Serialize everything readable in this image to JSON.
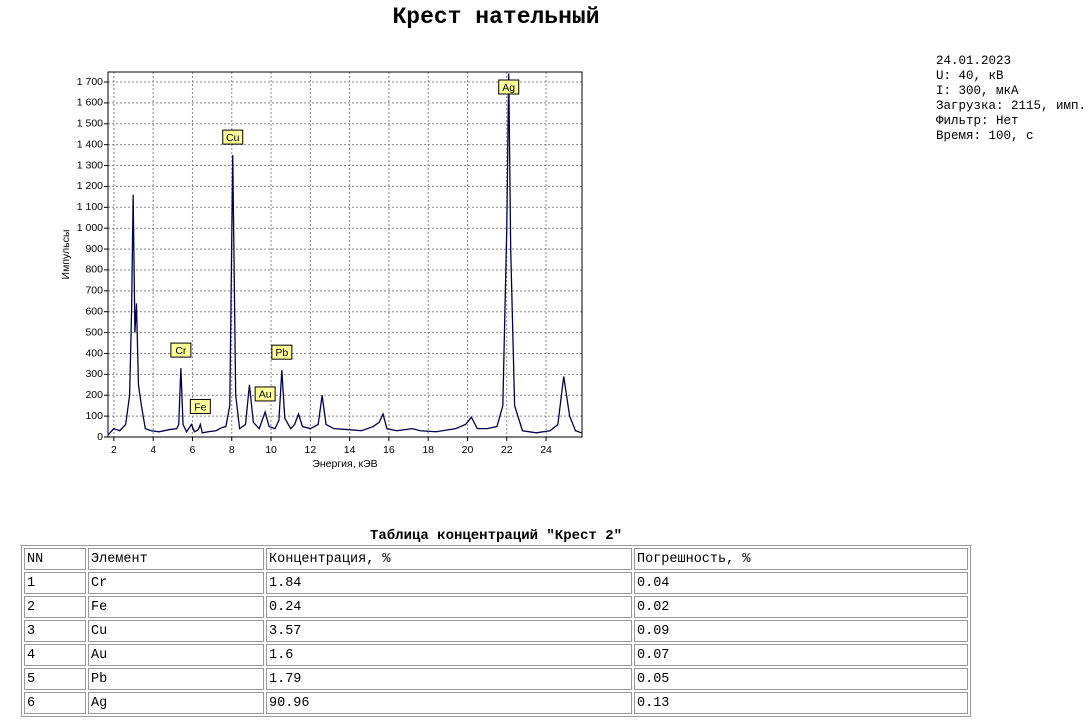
{
  "title": "Крест нательный",
  "info": [
    "24.01.2023",
    "U: 40, кВ",
    "I: 300, мкА",
    "Загрузка: 2115, имп.",
    "Фильтр: Нет",
    "Время: 100, с"
  ],
  "chart_data": {
    "type": "line",
    "xlabel": "Энергия, кЭВ",
    "ylabel": "Импульсы",
    "color": "#000050",
    "grid": true,
    "xlim": [
      1.7,
      25.83
    ],
    "ylim": [
      0,
      1748
    ],
    "xticks": [
      2,
      4,
      6,
      8,
      10,
      12,
      14,
      16,
      18,
      20,
      22,
      24
    ],
    "yticks": [
      0,
      100,
      200,
      300,
      400,
      500,
      600,
      700,
      800,
      900,
      {
        "value": 1000,
        "label": "1 000"
      },
      {
        "value": 1100,
        "label": "1 100"
      },
      {
        "value": 1200,
        "label": "1 200"
      },
      {
        "value": 1300,
        "label": "1 300"
      },
      {
        "value": 1400,
        "label": "1 400"
      },
      {
        "value": 1500,
        "label": "1 500"
      },
      {
        "value": 1600,
        "label": "1 600"
      },
      {
        "value": 1700,
        "label": "1 700"
      }
    ],
    "x": [
      1.7,
      2.0,
      2.3,
      2.6,
      2.8,
      2.9,
      2.98,
      3.07,
      3.15,
      3.25,
      3.4,
      3.6,
      3.9,
      4.3,
      4.8,
      5.2,
      5.3,
      5.41,
      5.52,
      5.7,
      5.95,
      6.1,
      6.3,
      6.4,
      6.5,
      6.8,
      7.2,
      7.5,
      7.7,
      7.9,
      8.05,
      8.2,
      8.4,
      8.7,
      8.9,
      9.1,
      9.4,
      9.7,
      9.9,
      10.2,
      10.4,
      10.55,
      10.7,
      11.0,
      11.2,
      11.4,
      11.6,
      12.0,
      12.4,
      12.6,
      12.8,
      13.2,
      14.0,
      14.6,
      15.2,
      15.5,
      15.7,
      15.9,
      16.4,
      17.2,
      17.6,
      18.4,
      19.4,
      19.9,
      20.2,
      20.5,
      21.0,
      21.5,
      21.8,
      22.0,
      22.1,
      22.2,
      22.4,
      22.8,
      23.5,
      24.2,
      24.6,
      24.9,
      25.2,
      25.5,
      25.8
    ],
    "values": [
      10,
      40,
      30,
      60,
      200,
      600,
      1160,
      500,
      640,
      250,
      150,
      40,
      30,
      25,
      35,
      40,
      60,
      330,
      60,
      25,
      60,
      25,
      35,
      60,
      20,
      25,
      30,
      45,
      50,
      150,
      1350,
      200,
      40,
      60,
      250,
      70,
      40,
      120,
      50,
      40,
      80,
      320,
      90,
      40,
      60,
      110,
      50,
      40,
      60,
      200,
      60,
      40,
      35,
      30,
      50,
      70,
      110,
      40,
      30,
      40,
      30,
      25,
      40,
      60,
      95,
      40,
      40,
      50,
      150,
      1000,
      1740,
      900,
      150,
      30,
      20,
      30,
      60,
      290,
      100,
      30,
      20
    ],
    "annotations": [
      {
        "text": "Cr",
        "x": 5.41,
        "y": 330
      },
      {
        "text": "Fe",
        "x": 6.4,
        "y": 60
      },
      {
        "text": "Cu",
        "x": 8.05,
        "y": 1350
      },
      {
        "text": "Au",
        "x": 9.7,
        "y": 120
      },
      {
        "text": "Pb",
        "x": 10.55,
        "y": 320
      },
      {
        "text": "Ag",
        "x": 22.1,
        "y": 1740
      }
    ]
  },
  "table": {
    "title": "Таблица концентраций \"Крест 2\"",
    "header": [
      "NN",
      "Элемент",
      "Концентрация, %",
      "Погрешность, %"
    ],
    "rows": [
      [
        "1",
        "Cr",
        "1.84",
        "0.04"
      ],
      [
        "2",
        "Fe",
        "0.24",
        "0.02"
      ],
      [
        "3",
        "Cu",
        "3.57",
        "0.09"
      ],
      [
        "4",
        "Au",
        "1.6",
        "0.07"
      ],
      [
        "5",
        "Pb",
        "1.79",
        "0.05"
      ],
      [
        "6",
        "Ag",
        "90.96",
        "0.13"
      ]
    ]
  }
}
